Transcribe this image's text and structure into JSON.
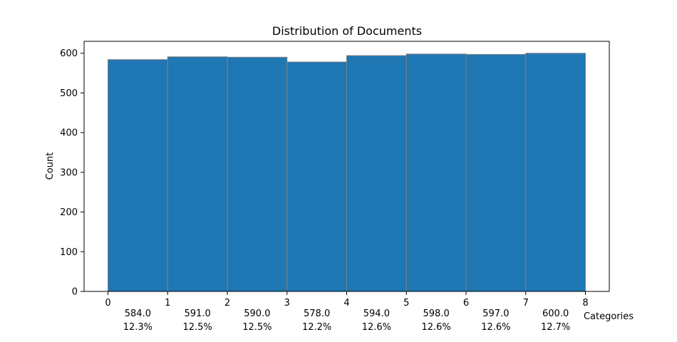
{
  "chart_data": {
    "type": "bar",
    "title": "Distribution of Documents",
    "xlabel": "Categories",
    "ylabel": "Count",
    "x_ticks": [
      "0",
      "1",
      "2",
      "3",
      "4",
      "5",
      "6",
      "7",
      "8"
    ],
    "y_ticks": [
      "0",
      "100",
      "200",
      "300",
      "400",
      "500",
      "600"
    ],
    "xlim": [
      -0.4,
      8.4
    ],
    "ylim": [
      0,
      630
    ],
    "bin_edges": [
      0,
      1,
      2,
      3,
      4,
      5,
      6,
      7,
      8
    ],
    "values": [
      584,
      591,
      590,
      578,
      594,
      598,
      597,
      600
    ],
    "count_labels": [
      "584.0",
      "591.0",
      "590.0",
      "578.0",
      "594.0",
      "598.0",
      "597.0",
      "600.0"
    ],
    "percent_labels": [
      "12.3%",
      "12.5%",
      "12.5%",
      "12.2%",
      "12.6%",
      "12.6%",
      "12.6%",
      "12.7%"
    ],
    "grid": false,
    "colors": {
      "bar_fill": "#1f77b4",
      "bar_edge": "#808080",
      "axes": "#000000"
    }
  }
}
